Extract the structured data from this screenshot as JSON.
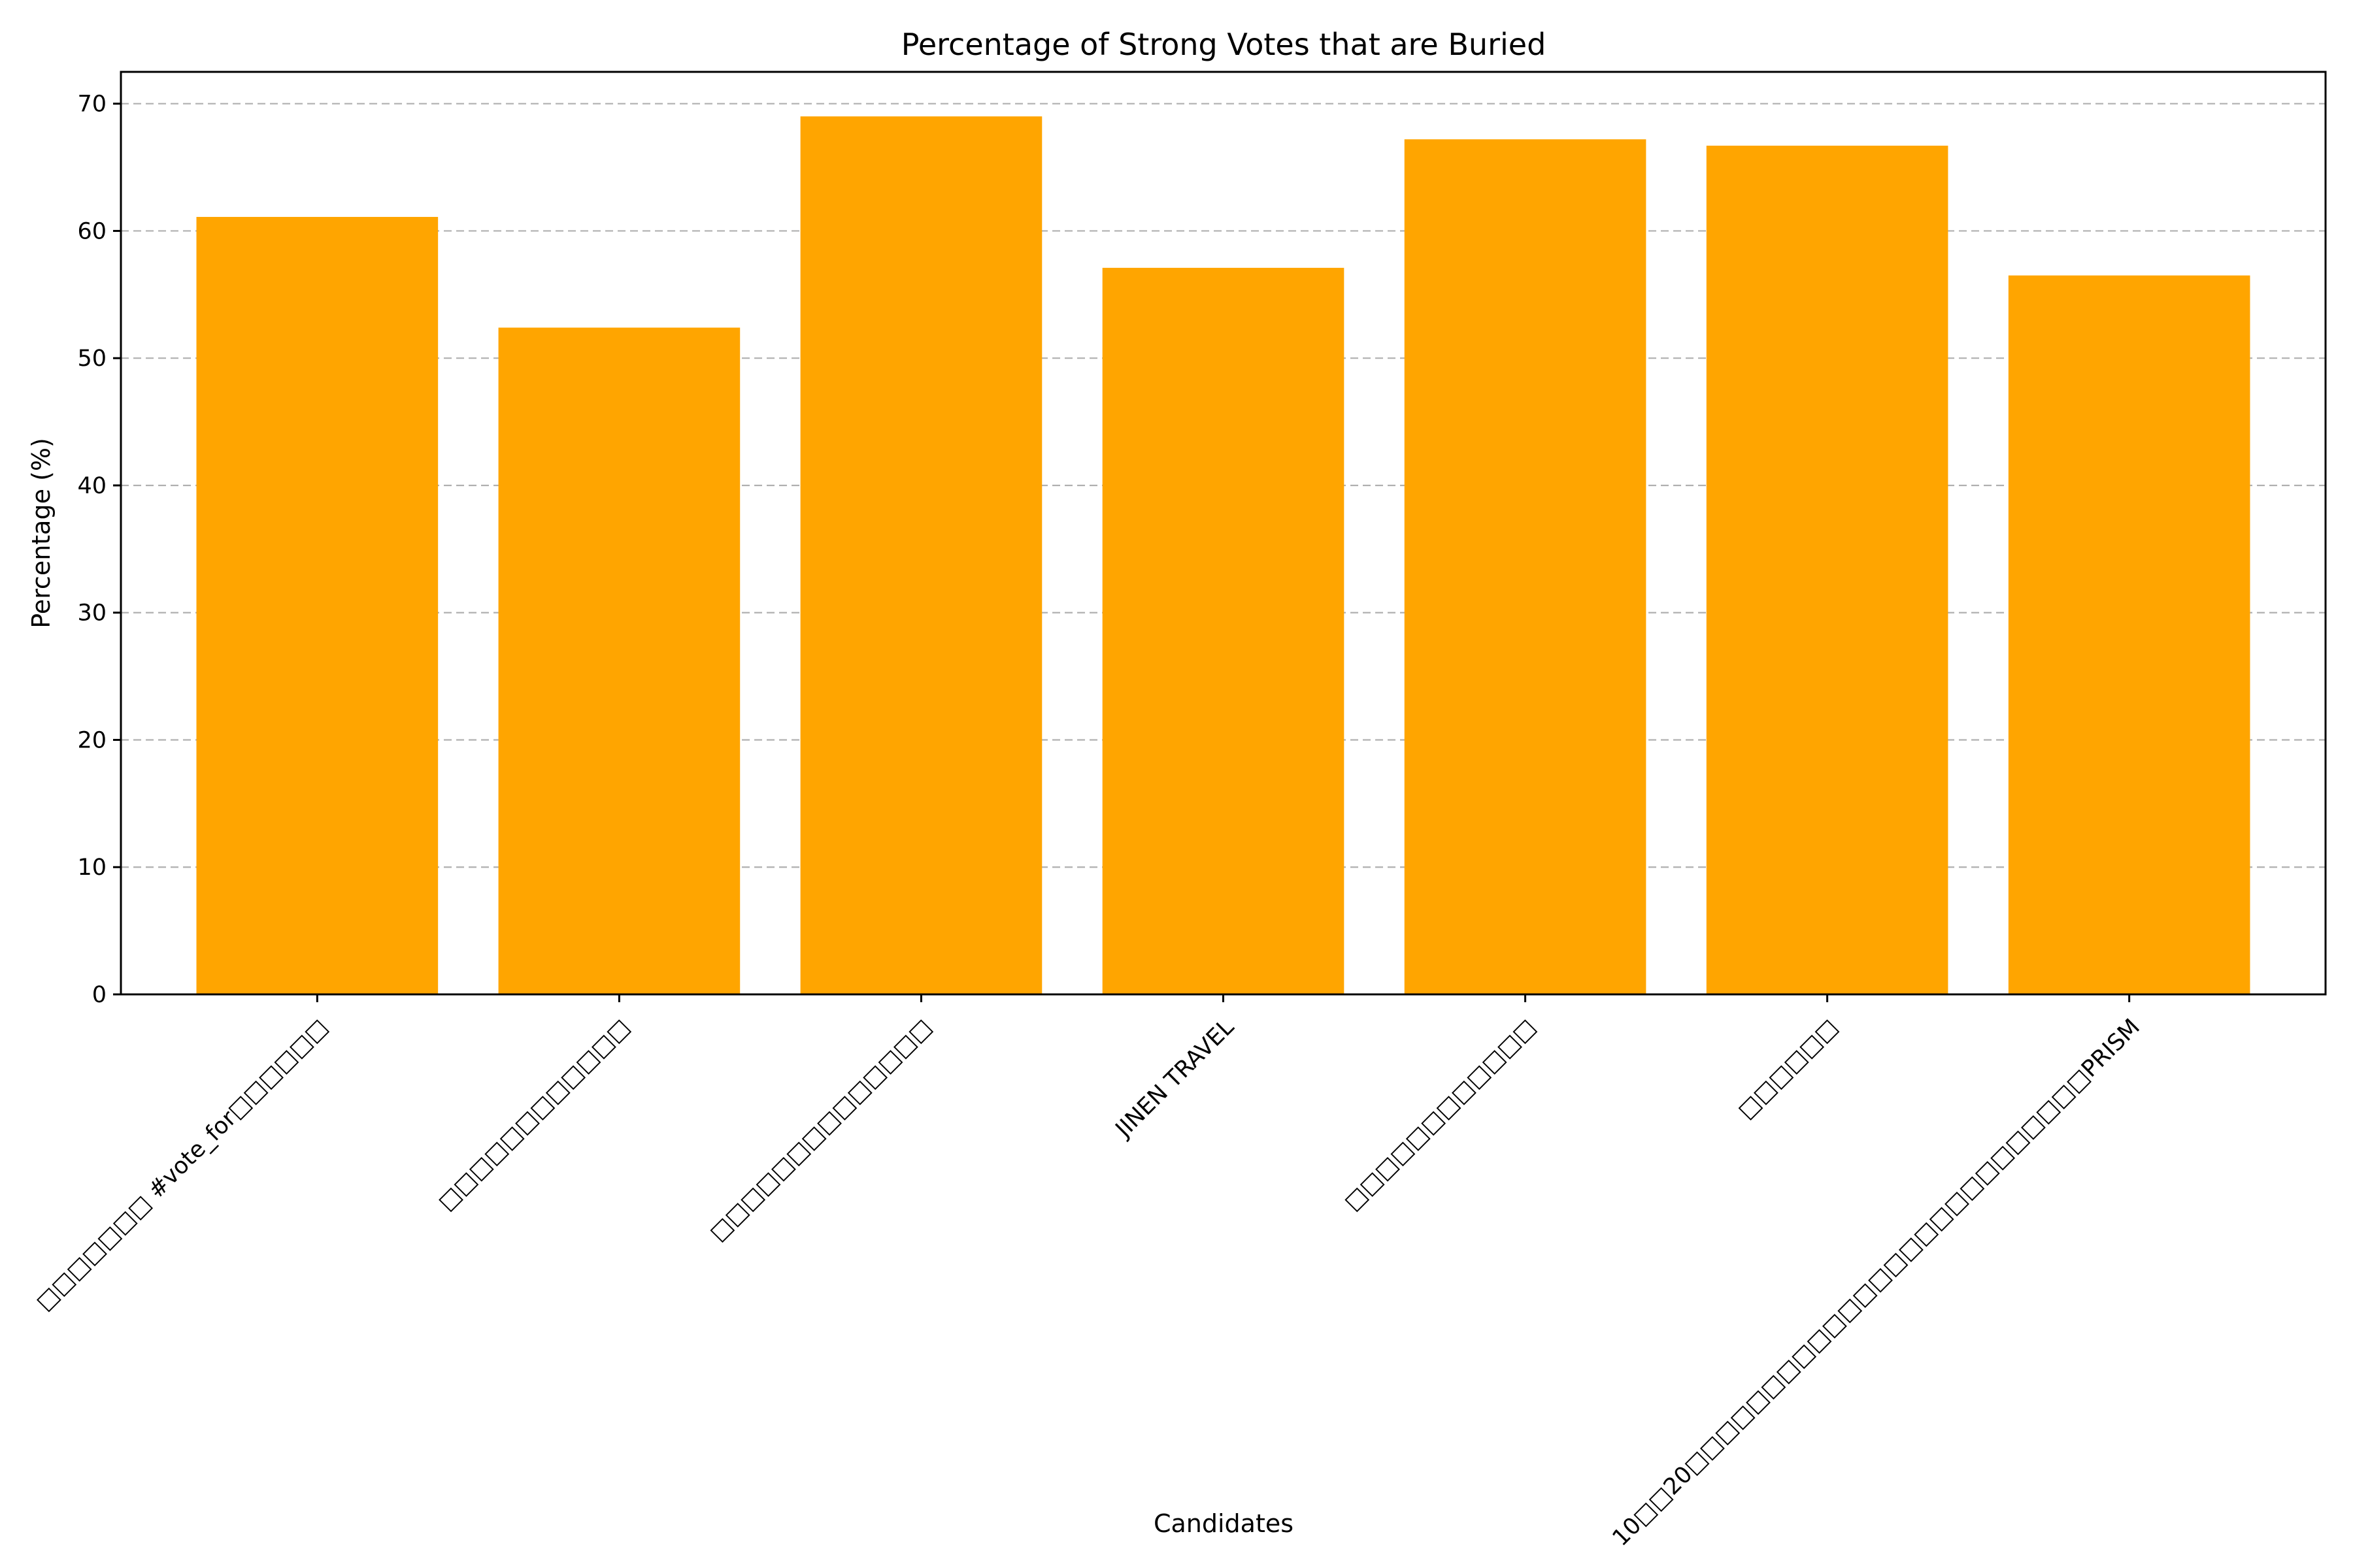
{
  "chart_data": {
    "type": "bar",
    "title": "Percentage of Strong Votes that are Buried",
    "xlabel": "Candidates",
    "ylabel": "Percentage (%)",
    "categories": [
      "□□□□□□□ #vote_for□□□□□□",
      "□□□□□□□□□□□□",
      "□□□□□□□□□□□□□□",
      "JINEN TRAVEL",
      "□□□□□□□□□□□□",
      "□□□□□□",
      "10□□20□□□□□□□□□□□□□□□□□□□□□□□□□□PRISM"
    ],
    "values": [
      61.1,
      52.4,
      69.0,
      57.1,
      67.2,
      66.7,
      56.5
    ],
    "ylim": [
      0,
      72.5
    ],
    "yticks": [
      0,
      10,
      20,
      30,
      40,
      50,
      60,
      70
    ],
    "grid": "y",
    "bar_color": "#ffa500"
  }
}
